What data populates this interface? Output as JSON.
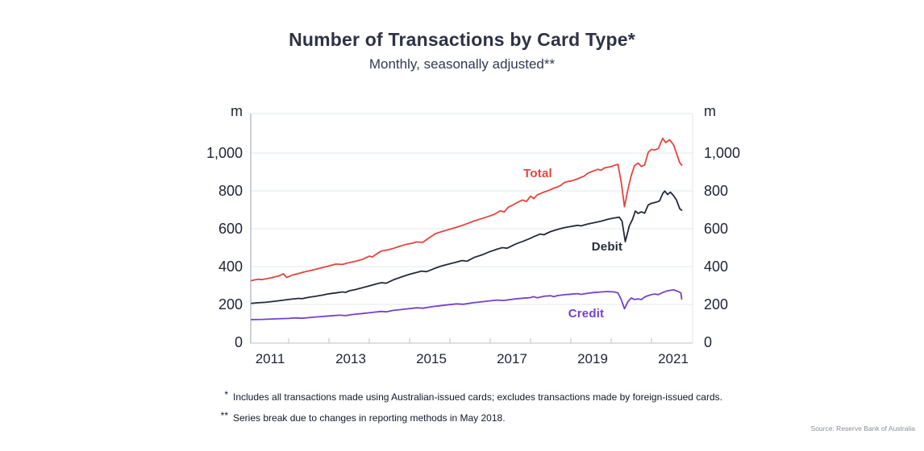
{
  "header": {
    "title": "Number of Transactions by Card Type*",
    "subtitle": "Monthly, seasonally adjusted**"
  },
  "axis": {
    "unit": "m",
    "yticks": [
      "1,000",
      "800",
      "600",
      "400",
      "200",
      "0"
    ],
    "xticks": [
      "2011",
      "2013",
      "2015",
      "2017",
      "2019",
      "2021"
    ]
  },
  "footnotes": [
    {
      "marker": "*",
      "text": "Includes all transactions made using Australian-issued cards; excludes transactions made by foreign-issued cards."
    },
    {
      "marker": "**",
      "text": "Series break due to changes in reporting methods in May 2018."
    }
  ],
  "source": "Source: Reserve Bank of Australia",
  "colors": {
    "total": "#e5443d",
    "debit": "#262b3a",
    "credit": "#7540cf",
    "gridline": "#e2e8ee",
    "text": "#1f2337"
  },
  "chart_data": {
    "type": "line",
    "title": "Number of Transactions by Card Type (millions)",
    "subtitle": "Monthly, seasonally adjusted",
    "unit": "m",
    "ylim": [
      0,
      1200
    ],
    "ytick_values": [
      0,
      200,
      400,
      600,
      800,
      1000
    ],
    "x_range": [
      2011,
      2022
    ],
    "grid": "horizontal",
    "legend_position": "inline-labels",
    "annotations": [
      "Total",
      "Debit",
      "Credit"
    ],
    "series": [
      {
        "name": "Total",
        "color": "#e5443d",
        "points": [
          [
            2011.08,
            326
          ],
          [
            2011.17,
            330
          ],
          [
            2011.25,
            333
          ],
          [
            2011.33,
            331
          ],
          [
            2011.5,
            338
          ],
          [
            2011.62,
            344
          ],
          [
            2011.75,
            350
          ],
          [
            2011.87,
            362
          ],
          [
            2011.95,
            342
          ],
          [
            2012.08,
            354
          ],
          [
            2012.25,
            364
          ],
          [
            2012.42,
            373
          ],
          [
            2012.58,
            381
          ],
          [
            2012.75,
            390
          ],
          [
            2012.92,
            399
          ],
          [
            2013.08,
            408
          ],
          [
            2013.17,
            413
          ],
          [
            2013.33,
            411
          ],
          [
            2013.5,
            421
          ],
          [
            2013.67,
            429
          ],
          [
            2013.83,
            438
          ],
          [
            2014.0,
            455
          ],
          [
            2014.08,
            451
          ],
          [
            2014.17,
            465
          ],
          [
            2014.3,
            482
          ],
          [
            2014.42,
            487
          ],
          [
            2014.58,
            495
          ],
          [
            2014.75,
            507
          ],
          [
            2014.92,
            518
          ],
          [
            2015.08,
            524
          ],
          [
            2015.17,
            530
          ],
          [
            2015.33,
            528
          ],
          [
            2015.45,
            547
          ],
          [
            2015.64,
            574
          ],
          [
            2015.8,
            585
          ],
          [
            2015.95,
            594
          ],
          [
            2016.15,
            607
          ],
          [
            2016.3,
            617
          ],
          [
            2016.45,
            629
          ],
          [
            2016.6,
            641
          ],
          [
            2016.8,
            654
          ],
          [
            2016.98,
            667
          ],
          [
            2017.1,
            676
          ],
          [
            2017.25,
            694
          ],
          [
            2017.35,
            689
          ],
          [
            2017.45,
            714
          ],
          [
            2017.55,
            724
          ],
          [
            2017.65,
            736
          ],
          [
            2017.8,
            752
          ],
          [
            2017.9,
            744
          ],
          [
            2018.0,
            772
          ],
          [
            2018.08,
            759
          ],
          [
            2018.17,
            779
          ],
          [
            2018.33,
            793
          ],
          [
            2018.42,
            800
          ],
          [
            2018.5,
            807
          ],
          [
            2018.58,
            815
          ],
          [
            2018.67,
            821
          ],
          [
            2018.75,
            829
          ],
          [
            2018.83,
            843
          ],
          [
            2018.92,
            850
          ],
          [
            2019.0,
            852
          ],
          [
            2019.08,
            857
          ],
          [
            2019.17,
            864
          ],
          [
            2019.25,
            871
          ],
          [
            2019.33,
            878
          ],
          [
            2019.42,
            893
          ],
          [
            2019.5,
            900
          ],
          [
            2019.58,
            907
          ],
          [
            2019.67,
            914
          ],
          [
            2019.75,
            909
          ],
          [
            2019.83,
            921
          ],
          [
            2019.92,
            925
          ],
          [
            2020.0,
            928
          ],
          [
            2020.08,
            935
          ],
          [
            2020.17,
            940
          ],
          [
            2020.25,
            845
          ],
          [
            2020.33,
            716
          ],
          [
            2020.42,
            812
          ],
          [
            2020.5,
            882
          ],
          [
            2020.58,
            934
          ],
          [
            2020.67,
            947
          ],
          [
            2020.75,
            929
          ],
          [
            2020.83,
            937
          ],
          [
            2020.92,
            1004
          ],
          [
            2021.0,
            1019
          ],
          [
            2021.08,
            1016
          ],
          [
            2021.17,
            1024
          ],
          [
            2021.28,
            1078
          ],
          [
            2021.35,
            1055
          ],
          [
            2021.45,
            1070
          ],
          [
            2021.55,
            1042
          ],
          [
            2021.62,
            999
          ],
          [
            2021.7,
            949
          ],
          [
            2021.75,
            936
          ]
        ]
      },
      {
        "name": "Debit",
        "color": "#262b3a",
        "points": [
          [
            2011.08,
            206
          ],
          [
            2011.25,
            209
          ],
          [
            2011.42,
            211
          ],
          [
            2011.58,
            215
          ],
          [
            2011.75,
            219
          ],
          [
            2011.92,
            224
          ],
          [
            2012.08,
            228
          ],
          [
            2012.25,
            232
          ],
          [
            2012.33,
            230
          ],
          [
            2012.5,
            238
          ],
          [
            2012.67,
            243
          ],
          [
            2012.83,
            249
          ],
          [
            2013.0,
            256
          ],
          [
            2013.17,
            261
          ],
          [
            2013.33,
            266
          ],
          [
            2013.42,
            264
          ],
          [
            2013.5,
            272
          ],
          [
            2013.64,
            278
          ],
          [
            2013.83,
            288
          ],
          [
            2014.0,
            298
          ],
          [
            2014.17,
            308
          ],
          [
            2014.3,
            315
          ],
          [
            2014.42,
            312
          ],
          [
            2014.6,
            330
          ],
          [
            2014.8,
            345
          ],
          [
            2014.98,
            358
          ],
          [
            2015.1,
            365
          ],
          [
            2015.3,
            376
          ],
          [
            2015.42,
            373
          ],
          [
            2015.64,
            392
          ],
          [
            2015.8,
            404
          ],
          [
            2016.0,
            415
          ],
          [
            2016.17,
            424
          ],
          [
            2016.3,
            432
          ],
          [
            2016.42,
            428
          ],
          [
            2016.6,
            448
          ],
          [
            2016.8,
            462
          ],
          [
            2016.98,
            478
          ],
          [
            2017.17,
            492
          ],
          [
            2017.3,
            500
          ],
          [
            2017.42,
            497
          ],
          [
            2017.64,
            520
          ],
          [
            2017.83,
            535
          ],
          [
            2018.0,
            550
          ],
          [
            2018.1,
            560
          ],
          [
            2018.24,
            572
          ],
          [
            2018.33,
            568
          ],
          [
            2018.5,
            585
          ],
          [
            2018.67,
            596
          ],
          [
            2018.83,
            605
          ],
          [
            2019.0,
            612
          ],
          [
            2019.17,
            618
          ],
          [
            2019.25,
            615
          ],
          [
            2019.42,
            625
          ],
          [
            2019.58,
            632
          ],
          [
            2019.75,
            640
          ],
          [
            2019.92,
            650
          ],
          [
            2020.08,
            657
          ],
          [
            2020.2,
            661
          ],
          [
            2020.27,
            640
          ],
          [
            2020.35,
            532
          ],
          [
            2020.45,
            615
          ],
          [
            2020.53,
            650
          ],
          [
            2020.6,
            693
          ],
          [
            2020.67,
            681
          ],
          [
            2020.75,
            689
          ],
          [
            2020.83,
            682
          ],
          [
            2020.92,
            726
          ],
          [
            2021.0,
            734
          ],
          [
            2021.1,
            739
          ],
          [
            2021.2,
            747
          ],
          [
            2021.28,
            786
          ],
          [
            2021.33,
            799
          ],
          [
            2021.4,
            781
          ],
          [
            2021.47,
            793
          ],
          [
            2021.55,
            774
          ],
          [
            2021.62,
            752
          ],
          [
            2021.7,
            706
          ],
          [
            2021.75,
            698
          ]
        ]
      },
      {
        "name": "Credit",
        "color": "#7540cf",
        "points": [
          [
            2011.08,
            120
          ],
          [
            2011.33,
            121
          ],
          [
            2011.58,
            123
          ],
          [
            2011.83,
            125
          ],
          [
            2012.0,
            126
          ],
          [
            2012.17,
            129
          ],
          [
            2012.33,
            127
          ],
          [
            2012.58,
            132
          ],
          [
            2012.83,
            136
          ],
          [
            2013.0,
            139
          ],
          [
            2013.25,
            143
          ],
          [
            2013.42,
            141
          ],
          [
            2013.58,
            147
          ],
          [
            2013.83,
            152
          ],
          [
            2014.08,
            158
          ],
          [
            2014.3,
            163
          ],
          [
            2014.42,
            161
          ],
          [
            2014.58,
            168
          ],
          [
            2014.83,
            174
          ],
          [
            2015.0,
            178
          ],
          [
            2015.17,
            182
          ],
          [
            2015.33,
            180
          ],
          [
            2015.58,
            189
          ],
          [
            2015.83,
            195
          ],
          [
            2016.0,
            199
          ],
          [
            2016.17,
            203
          ],
          [
            2016.33,
            201
          ],
          [
            2016.58,
            209
          ],
          [
            2016.83,
            215
          ],
          [
            2017.0,
            219
          ],
          [
            2017.17,
            223
          ],
          [
            2017.33,
            221
          ],
          [
            2017.58,
            228
          ],
          [
            2017.83,
            233
          ],
          [
            2018.0,
            236
          ],
          [
            2018.08,
            241
          ],
          [
            2018.17,
            235
          ],
          [
            2018.33,
            243
          ],
          [
            2018.5,
            246
          ],
          [
            2018.58,
            241
          ],
          [
            2018.67,
            247
          ],
          [
            2018.83,
            251
          ],
          [
            2019.0,
            254
          ],
          [
            2019.17,
            257
          ],
          [
            2019.25,
            253
          ],
          [
            2019.42,
            259
          ],
          [
            2019.58,
            263
          ],
          [
            2019.75,
            266
          ],
          [
            2019.92,
            268
          ],
          [
            2020.08,
            266
          ],
          [
            2020.17,
            261
          ],
          [
            2020.25,
            225
          ],
          [
            2020.33,
            177
          ],
          [
            2020.42,
            216
          ],
          [
            2020.5,
            234
          ],
          [
            2020.58,
            226
          ],
          [
            2020.67,
            229
          ],
          [
            2020.75,
            226
          ],
          [
            2020.83,
            239
          ],
          [
            2020.92,
            247
          ],
          [
            2021.0,
            252
          ],
          [
            2021.08,
            255
          ],
          [
            2021.17,
            252
          ],
          [
            2021.28,
            263
          ],
          [
            2021.38,
            271
          ],
          [
            2021.48,
            275
          ],
          [
            2021.55,
            277
          ],
          [
            2021.62,
            272
          ],
          [
            2021.68,
            267
          ],
          [
            2021.73,
            260
          ],
          [
            2021.75,
            228
          ]
        ]
      }
    ]
  }
}
